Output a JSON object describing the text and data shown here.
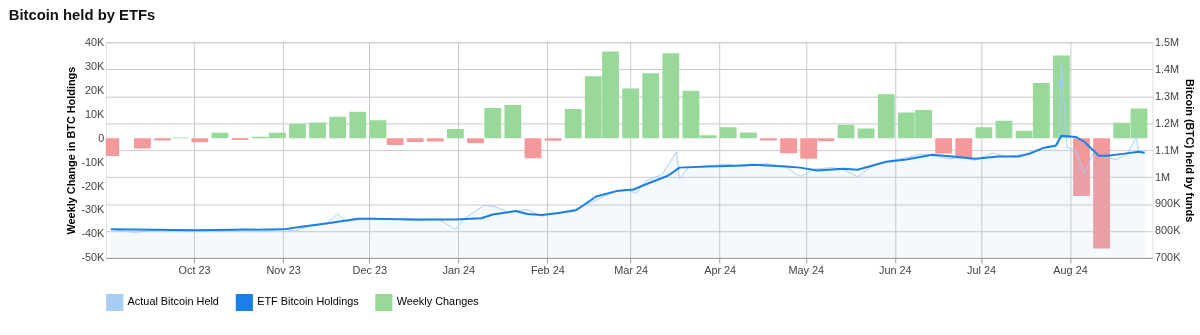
{
  "chart_data": {
    "type": "bar",
    "title": "Bitcoin held by ETFs",
    "ylabel": "Weekly Change in BTC Holdings",
    "y2label": "Bitcoin (BTC) held by funds",
    "xlim": [
      "2023-09-02",
      "2024-08-28"
    ],
    "xticks": [
      {
        "value": "2023-10-01",
        "label": "Oct 23"
      },
      {
        "value": "2023-11-01",
        "label": "Nov 23"
      },
      {
        "value": "2023-12-01",
        "label": "Dec 23"
      },
      {
        "value": "2024-01-01",
        "label": "Jan 24"
      },
      {
        "value": "2024-02-01",
        "label": "Feb 24"
      },
      {
        "value": "2024-03-01",
        "label": "Mar 24"
      },
      {
        "value": "2024-04-01",
        "label": "Apr 24"
      },
      {
        "value": "2024-05-01",
        "label": "May 24"
      },
      {
        "value": "2024-06-01",
        "label": "Jun 24"
      },
      {
        "value": "2024-07-01",
        "label": "Jul 24"
      },
      {
        "value": "2024-08-01",
        "label": "Aug 24"
      }
    ],
    "ylim": [
      -50000,
      40000
    ],
    "yticks": [
      {
        "value": -50000,
        "label": "-50K"
      },
      {
        "value": -40000,
        "label": "-40K"
      },
      {
        "value": -30000,
        "label": "-30K"
      },
      {
        "value": -20000,
        "label": "-20K"
      },
      {
        "value": -10000,
        "label": "-10K"
      },
      {
        "value": 0,
        "label": "0"
      },
      {
        "value": 10000,
        "label": "10K"
      },
      {
        "value": 20000,
        "label": "20K"
      },
      {
        "value": 30000,
        "label": "30K"
      },
      {
        "value": 40000,
        "label": "40K"
      }
    ],
    "y2lim": [
      700000,
      1500000
    ],
    "y2ticks": [
      {
        "value": 700000,
        "label": "700K"
      },
      {
        "value": 800000,
        "label": "800K"
      },
      {
        "value": 900000,
        "label": "900K"
      },
      {
        "value": 1000000,
        "label": "1M"
      },
      {
        "value": 1100000,
        "label": "1.1M"
      },
      {
        "value": 1200000,
        "label": "1.2M"
      },
      {
        "value": 1300000,
        "label": "1.3M"
      },
      {
        "value": 1400000,
        "label": "1.4M"
      },
      {
        "value": 1500000,
        "label": "1.5M"
      }
    ],
    "grid": true,
    "legend": "bottom",
    "series": [
      {
        "name": "Actual Bitcoin Held",
        "type": "area",
        "axis": "y2",
        "color": "#a8cdf5",
        "x": [
          "2023-09-02",
          "2023-09-10",
          "2023-09-20",
          "2023-10-01",
          "2023-10-10",
          "2023-10-18",
          "2023-10-25",
          "2023-11-01",
          "2023-11-05",
          "2023-11-10",
          "2023-11-16",
          "2023-11-20",
          "2023-11-23",
          "2023-12-01",
          "2023-12-10",
          "2023-12-18",
          "2023-12-25",
          "2023-12-31",
          "2024-01-03",
          "2024-01-10",
          "2024-01-14",
          "2024-01-18",
          "2024-01-25",
          "2024-01-30",
          "2024-02-05",
          "2024-02-11",
          "2024-02-16",
          "2024-02-22",
          "2024-02-28",
          "2024-03-03",
          "2024-03-06",
          "2024-03-12",
          "2024-03-17",
          "2024-03-18",
          "2024-03-21",
          "2024-03-28",
          "2024-04-04",
          "2024-04-10",
          "2024-04-17",
          "2024-04-24",
          "2024-04-29",
          "2024-05-04",
          "2024-05-10",
          "2024-05-14",
          "2024-05-19",
          "2024-05-24",
          "2024-05-29",
          "2024-06-05",
          "2024-06-10",
          "2024-06-15",
          "2024-06-20",
          "2024-06-25",
          "2024-06-29",
          "2024-07-05",
          "2024-07-10",
          "2024-07-16",
          "2024-07-20",
          "2024-07-25",
          "2024-07-28",
          "2024-07-29",
          "2024-07-31",
          "2024-08-03",
          "2024-08-06",
          "2024-08-09",
          "2024-08-13",
          "2024-08-17",
          "2024-08-21",
          "2024-08-24",
          "2024-08-25",
          "2024-08-27"
        ],
        "values": [
          806000,
          795000,
          806000,
          803000,
          800000,
          808000,
          800000,
          806000,
          800000,
          818000,
          828000,
          863000,
          835000,
          848000,
          843000,
          838000,
          845000,
          806000,
          845000,
          896000,
          890000,
          870000,
          880000,
          855000,
          868000,
          882000,
          905000,
          935000,
          955000,
          940000,
          985000,
          1010000,
          1094000,
          994000,
          1035000,
          1042000,
          1048000,
          1040000,
          1050000,
          1038000,
          1002000,
          1030000,
          1035000,
          1028000,
          1002000,
          1040000,
          1058000,
          1072000,
          1085000,
          1078000,
          1068000,
          1072000,
          1062000,
          1090000,
          1075000,
          1085000,
          1100000,
          1115000,
          1120000,
          1426000,
          1110000,
          1100000,
          1013000,
          1090000,
          1075000,
          1065000,
          1085000,
          1149000,
          1095000,
          1085000
        ]
      },
      {
        "name": "ETF Bitcoin Holdings",
        "type": "line",
        "axis": "y2",
        "color": "#1a7fe8",
        "x": [
          "2023-09-02",
          "2023-10-01",
          "2023-11-01",
          "2023-11-08",
          "2023-11-16",
          "2023-11-27",
          "2023-12-01",
          "2023-12-18",
          "2023-12-31",
          "2024-01-09",
          "2024-01-13",
          "2024-01-21",
          "2024-01-25",
          "2024-01-30",
          "2024-02-05",
          "2024-02-11",
          "2024-02-18",
          "2024-02-25",
          "2024-03-02",
          "2024-03-07",
          "2024-03-14",
          "2024-03-18",
          "2024-03-28",
          "2024-04-07",
          "2024-04-13",
          "2024-04-24",
          "2024-04-29",
          "2024-05-05",
          "2024-05-14",
          "2024-05-19",
          "2024-05-29",
          "2024-06-05",
          "2024-06-14",
          "2024-06-21",
          "2024-06-29",
          "2024-07-07",
          "2024-07-14",
          "2024-07-18",
          "2024-07-23",
          "2024-07-27",
          "2024-07-29",
          "2024-08-03",
          "2024-08-06",
          "2024-08-11",
          "2024-08-14",
          "2024-08-20",
          "2024-08-25",
          "2024-08-27"
        ],
        "values": [
          806000,
          803000,
          806000,
          817000,
          828000,
          845000,
          845000,
          843000,
          843000,
          847000,
          861000,
          874000,
          863000,
          859000,
          867000,
          877000,
          928000,
          948000,
          954000,
          976000,
          1005000,
          1035000,
          1039000,
          1042000,
          1046000,
          1039000,
          1035000,
          1024000,
          1031000,
          1027000,
          1057000,
          1065000,
          1083000,
          1076000,
          1068000,
          1076000,
          1076000,
          1087000,
          1109000,
          1116000,
          1153000,
          1149000,
          1131000,
          1079000,
          1079000,
          1087000,
          1094000,
          1090000
        ]
      },
      {
        "name": "Weekly Changes",
        "color": "#98d99a",
        "x": [
          "2023-09-02",
          "2023-09-13",
          "2023-09-20",
          "2023-09-26",
          "2023-10-03",
          "2023-10-10",
          "2023-10-17",
          "2023-10-24",
          "2023-10-30",
          "2023-11-06",
          "2023-11-13",
          "2023-11-20",
          "2023-11-27",
          "2023-12-04",
          "2023-12-10",
          "2023-12-17",
          "2023-12-24",
          "2023-12-31",
          "2024-01-07",
          "2024-01-13",
          "2024-01-20",
          "2024-01-27",
          "2024-02-03",
          "2024-02-10",
          "2024-02-17",
          "2024-02-23",
          "2024-03-01",
          "2024-03-08",
          "2024-03-15",
          "2024-03-22",
          "2024-03-28",
          "2024-04-04",
          "2024-04-11",
          "2024-04-18",
          "2024-04-25",
          "2024-05-02",
          "2024-05-08",
          "2024-05-15",
          "2024-05-22",
          "2024-05-29",
          "2024-06-05",
          "2024-06-11",
          "2024-06-18",
          "2024-06-25",
          "2024-07-02",
          "2024-07-09",
          "2024-07-16",
          "2024-07-22",
          "2024-07-29",
          "2024-08-05",
          "2024-08-12",
          "2024-08-19",
          "2024-08-25"
        ],
        "values": [
          -7500,
          -4300,
          -1000,
          300,
          -1700,
          2200,
          -800,
          600,
          2200,
          6000,
          6500,
          8900,
          11000,
          7500,
          -2900,
          -1600,
          -1400,
          3800,
          -2100,
          12600,
          13800,
          -8400,
          -1100,
          12200,
          25800,
          36100,
          20700,
          27100,
          35400,
          19800,
          1200,
          4500,
          2300,
          -1000,
          -6300,
          -8600,
          -1300,
          5600,
          4000,
          18300,
          10700,
          11700,
          -6400,
          -8100,
          4500,
          7300,
          3100,
          23000,
          34500,
          -24100,
          -46100,
          6400,
          12400
        ],
        "colors": [
          "#f4999b",
          "#f4999b",
          "#f4999b",
          "#98d99a",
          "#f4999b",
          "#98d99a",
          "#f4999b",
          "#98d99a",
          "#98d99a",
          "#98d99a",
          "#98d99a",
          "#98d99a",
          "#98d99a",
          "#98d99a",
          "#f4999b",
          "#f4999b",
          "#f4999b",
          "#98d99a",
          "#f4999b",
          "#98d99a",
          "#98d99a",
          "#f4999b",
          "#f4999b",
          "#98d99a",
          "#98d99a",
          "#98d99a",
          "#98d99a",
          "#98d99a",
          "#98d99a",
          "#98d99a",
          "#98d99a",
          "#98d99a",
          "#98d99a",
          "#f4999b",
          "#f4999b",
          "#f4999b",
          "#f4999b",
          "#98d99a",
          "#98d99a",
          "#98d99a",
          "#98d99a",
          "#98d99a",
          "#f4999b",
          "#f4999b",
          "#98d99a",
          "#98d99a",
          "#98d99a",
          "#98d99a",
          "#98d99a",
          "#f4999b",
          "#f4999b",
          "#98d99a",
          "#98d99a"
        ]
      }
    ]
  }
}
